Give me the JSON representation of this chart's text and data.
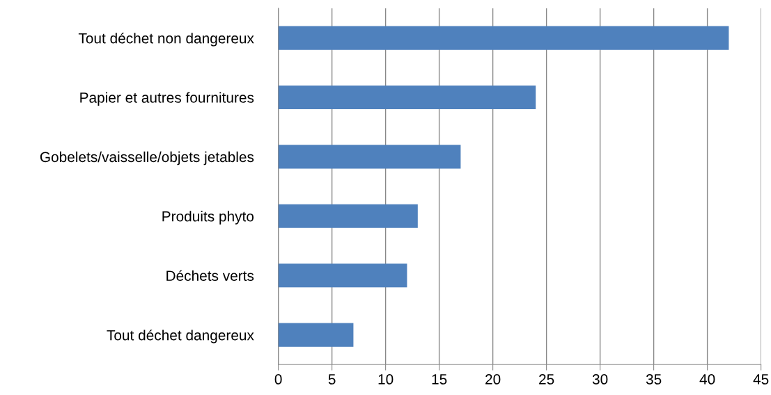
{
  "chart_data": {
    "type": "bar",
    "orientation": "horizontal",
    "categories": [
      "Tout déchet non dangereux",
      "Papier et autres fournitures",
      "Gobelets/vaisselle/objets jetables",
      "Produits phyto",
      "Déchets verts",
      "Tout déchet dangereux"
    ],
    "values": [
      42,
      24,
      17,
      13,
      12,
      7
    ],
    "color": "#4f81bd",
    "xlim": [
      0,
      45
    ],
    "xticks": [
      0,
      5,
      10,
      15,
      20,
      25,
      30,
      35,
      40,
      45
    ],
    "grid": "x"
  }
}
